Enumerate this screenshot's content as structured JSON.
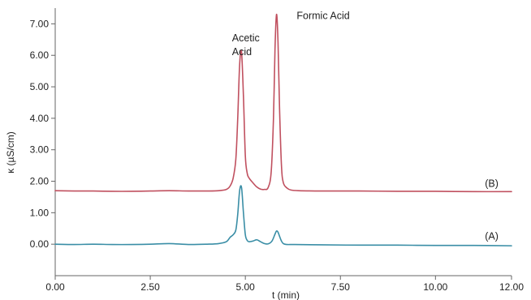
{
  "chart_data": {
    "type": "line",
    "xlabel": "t (min)",
    "ylabel": "κ (µS/cm)",
    "xlim": [
      0,
      12
    ],
    "ylim": [
      -1,
      7.5
    ],
    "x_ticks": [
      "0.00",
      "2.50",
      "5.00",
      "7.50",
      "10.00",
      "12.00"
    ],
    "x_tick_values": [
      0,
      2.5,
      5,
      7.5,
      10,
      12
    ],
    "y_ticks": [
      "0.00",
      "1.00",
      "2.00",
      "3.00",
      "4.00",
      "5.00",
      "6.00",
      "7.00"
    ],
    "y_tick_values": [
      0,
      1,
      2,
      3,
      4,
      5,
      6,
      7
    ],
    "grid": false,
    "series": [
      {
        "name": "(B)",
        "color": "#c0505f",
        "x": [
          0,
          0.5,
          1,
          1.5,
          2,
          2.5,
          3,
          3.5,
          4,
          4.3,
          4.5,
          4.6,
          4.68,
          4.75,
          4.8,
          4.85,
          4.9,
          4.95,
          5.0,
          5.05,
          5.1,
          5.2,
          5.3,
          5.4,
          5.5,
          5.6,
          5.68,
          5.74,
          5.78,
          5.82,
          5.86,
          5.9,
          5.95,
          6.0,
          6.1,
          6.2,
          6.4,
          7,
          8,
          9,
          10,
          11,
          12
        ],
        "y": [
          1.7,
          1.69,
          1.69,
          1.68,
          1.68,
          1.69,
          1.7,
          1.69,
          1.69,
          1.7,
          1.74,
          1.85,
          2.1,
          2.7,
          4.0,
          5.7,
          6.1,
          4.7,
          2.8,
          2.25,
          2.1,
          1.95,
          1.82,
          1.75,
          1.74,
          1.8,
          2.3,
          4.0,
          6.2,
          7.3,
          6.4,
          4.3,
          2.5,
          1.95,
          1.78,
          1.72,
          1.7,
          1.69,
          1.69,
          1.68,
          1.68,
          1.67,
          1.67
        ]
      },
      {
        "name": "(A)",
        "color": "#3a8ea6",
        "x": [
          0,
          0.5,
          1,
          1.5,
          2,
          2.5,
          3,
          3.5,
          4,
          4.3,
          4.5,
          4.6,
          4.68,
          4.75,
          4.8,
          4.85,
          4.9,
          4.95,
          5.0,
          5.05,
          5.1,
          5.2,
          5.3,
          5.4,
          5.5,
          5.6,
          5.7,
          5.78,
          5.82,
          5.86,
          5.9,
          5.95,
          6.0,
          6.1,
          6.3,
          7,
          8,
          9,
          10,
          11,
          12
        ],
        "y": [
          0.0,
          -0.01,
          0.0,
          -0.01,
          -0.01,
          0.0,
          0.02,
          -0.01,
          0.0,
          0.02,
          0.08,
          0.22,
          0.3,
          0.45,
          0.95,
          1.7,
          1.8,
          1.0,
          0.3,
          0.12,
          0.08,
          0.1,
          0.14,
          0.08,
          0.02,
          0.01,
          0.1,
          0.32,
          0.42,
          0.38,
          0.25,
          0.1,
          0.02,
          -0.01,
          -0.01,
          -0.02,
          -0.03,
          -0.03,
          -0.04,
          -0.04,
          -0.05
        ]
      }
    ],
    "annotations": [
      {
        "text": "Acetic",
        "x": 4.65,
        "y": 6.45
      },
      {
        "text": "Acid",
        "x": 4.65,
        "y": 6.0
      },
      {
        "text": "Formic Acid",
        "x": 6.35,
        "y": 7.15
      },
      {
        "text": "(B)",
        "x": 11.3,
        "y": 1.82
      },
      {
        "text": "(A)",
        "x": 11.3,
        "y": 0.15
      }
    ]
  }
}
